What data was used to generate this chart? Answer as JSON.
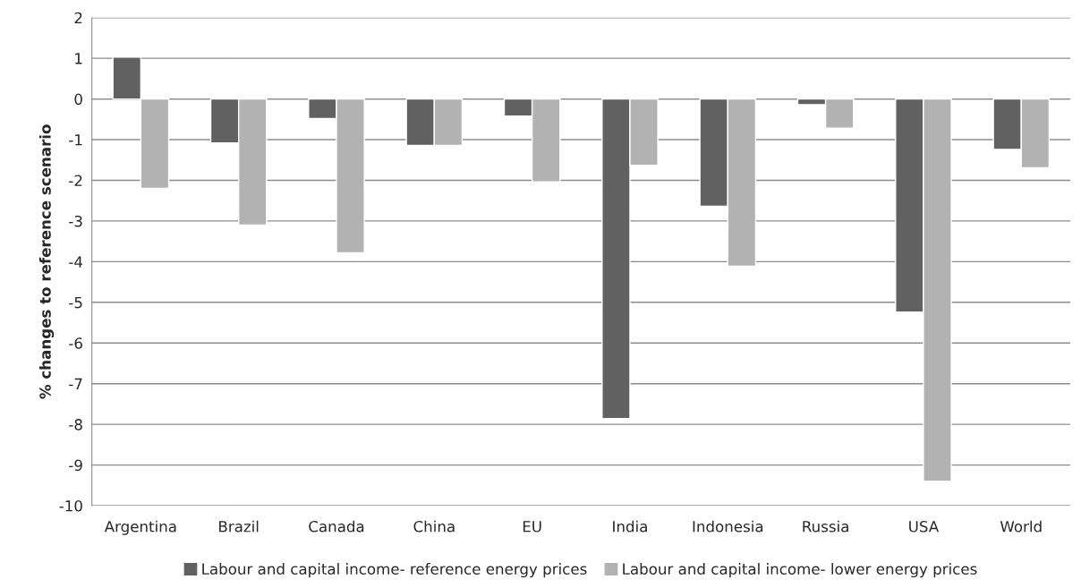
{
  "chart_data": {
    "type": "bar",
    "ylabel": "% changes to reference scenario",
    "categories": [
      "Argentina",
      "Brazil",
      "Canada",
      "China",
      "EU",
      "India",
      "Indonesia",
      "Russia",
      "USA",
      "World"
    ],
    "series": [
      {
        "name": "Labour and capital income- reference energy prices",
        "color": "#616161",
        "values": [
          1.03,
          -1.08,
          -0.48,
          -1.14,
          -0.42,
          -7.86,
          -2.64,
          -0.14,
          -5.24,
          -1.24
        ]
      },
      {
        "name": "Labour and capital income- lower energy prices",
        "color": "#b2b2b2",
        "values": [
          -2.2,
          -3.1,
          -3.78,
          -1.14,
          -2.04,
          -1.63,
          -4.11,
          -0.72,
          -9.4,
          -1.69
        ]
      }
    ],
    "ylim": [
      -10,
      2
    ],
    "yticks": [
      -10,
      -9,
      -8,
      -7,
      -6,
      -5,
      -4,
      -3,
      -2,
      -1,
      0,
      1,
      2
    ],
    "grid": "y",
    "legend": "bottom"
  }
}
